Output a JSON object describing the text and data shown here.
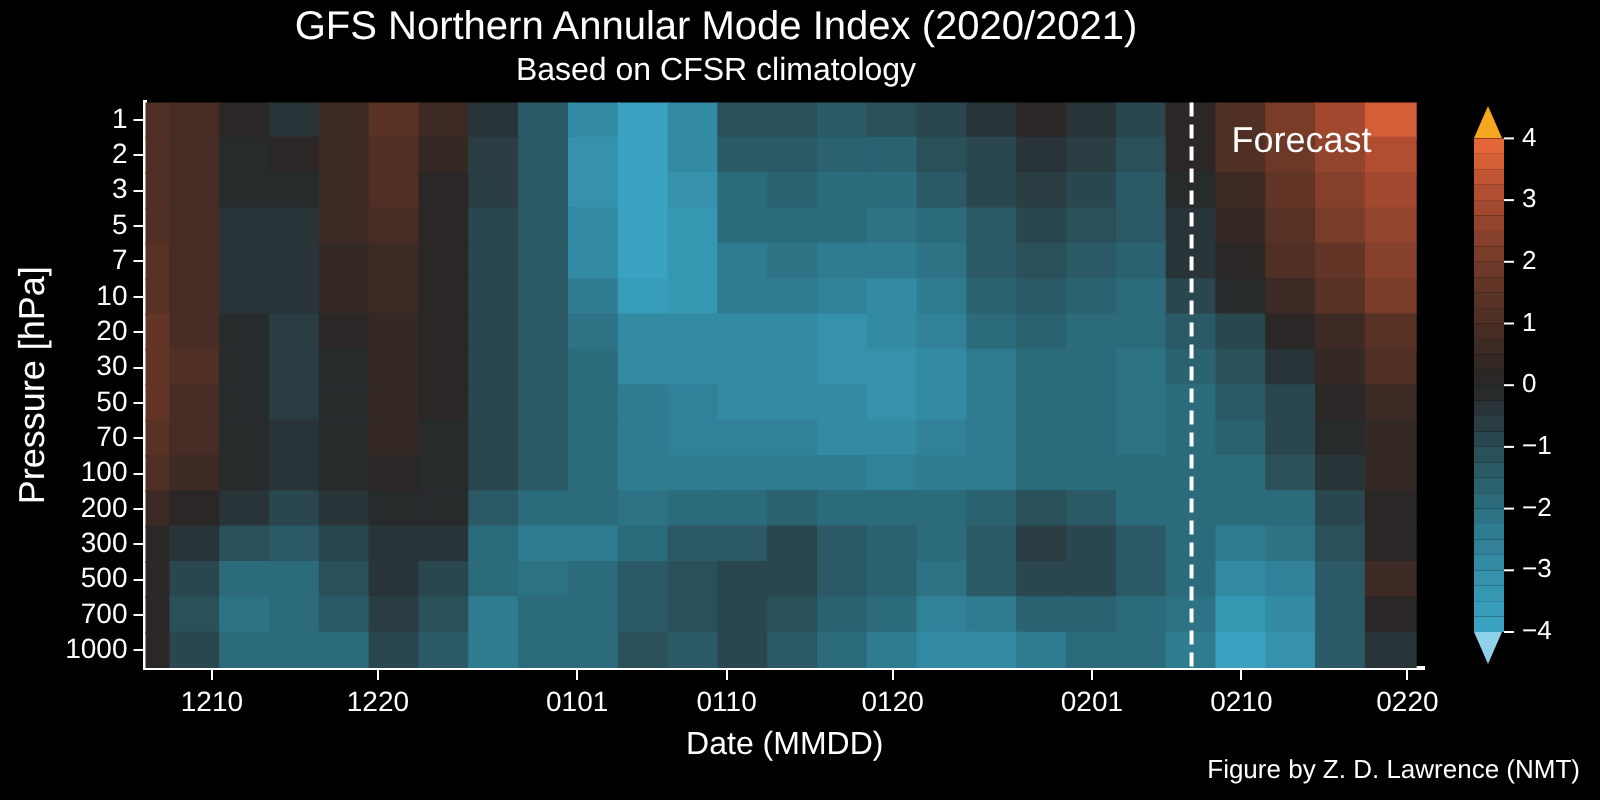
{
  "chart_data": {
    "type": "heatmap",
    "title": "GFS Northern Annular Mode Index (2020/2021)",
    "subtitle": "Based on CFSR climatology",
    "xlabel": "Date (MMDD)",
    "ylabel": "Pressure [hPa]",
    "x": [
      "2020-12-06",
      "2020-12-09",
      "2020-12-12",
      "2020-12-15",
      "2020-12-18",
      "2020-12-21",
      "2020-12-24",
      "2020-12-27",
      "2020-12-30",
      "2021-01-02",
      "2021-01-05",
      "2021-01-08",
      "2021-01-11",
      "2021-01-14",
      "2021-01-17",
      "2021-01-20",
      "2021-01-23",
      "2021-01-26",
      "2021-01-29",
      "2021-02-01",
      "2021-02-04",
      "2021-02-07",
      "2021-02-10",
      "2021-02-13",
      "2021-02-16",
      "2021-02-19"
    ],
    "xlim": [
      "2020-12-06",
      "2021-02-21"
    ],
    "xticks": [
      {
        "value": "2020-12-10",
        "label": "1210"
      },
      {
        "value": "2020-12-20",
        "label": "1220"
      },
      {
        "value": "2021-01-01",
        "label": "0101"
      },
      {
        "value": "2021-01-10",
        "label": "0110"
      },
      {
        "value": "2021-01-20",
        "label": "0120"
      },
      {
        "value": "2021-02-01",
        "label": "0201"
      },
      {
        "value": "2021-02-10",
        "label": "0210"
      },
      {
        "value": "2021-02-20",
        "label": "0220"
      }
    ],
    "y_categories": [
      "1",
      "2",
      "3",
      "5",
      "7",
      "10",
      "20",
      "30",
      "50",
      "70",
      "100",
      "200",
      "300",
      "500",
      "700",
      "1000"
    ],
    "cells": [
      [
        1,
        0.8,
        0,
        -0.3,
        0.5,
        1.3,
        0.5,
        -0.5,
        -1.5,
        -3,
        -4,
        -3,
        -1.2,
        -1.2,
        -1.5,
        -1.2,
        -0.9,
        -0.5,
        0,
        -0.5,
        -1,
        0.2,
        1.2,
        2,
        2.8,
        3.5
      ],
      [
        1,
        0.8,
        -0.2,
        0,
        0.5,
        1.2,
        0.4,
        -0.6,
        -1.5,
        -3.2,
        -4,
        -3,
        -1.5,
        -1.4,
        -1.7,
        -1.6,
        -1.2,
        -0.8,
        -0.4,
        -0.7,
        -1.1,
        0,
        1,
        1.8,
        2.6,
        3
      ],
      [
        1.1,
        0.8,
        -0.2,
        -0.1,
        0.5,
        1.1,
        0.2,
        -0.7,
        -1.5,
        -3.1,
        -4,
        -3.2,
        -1.8,
        -1.6,
        -1.8,
        -1.9,
        -1.5,
        -1,
        -0.7,
        -0.9,
        -1.3,
        -0.1,
        0.7,
        1.6,
        2.4,
        2.8
      ],
      [
        1.2,
        0.8,
        -0.3,
        -0.3,
        0.5,
        0.9,
        0.1,
        -0.8,
        -1.5,
        -3,
        -4,
        -3.3,
        -2,
        -1.8,
        -2,
        -2.2,
        -1.8,
        -1.3,
        -1,
        -1.2,
        -1.5,
        -0.3,
        0.3,
        1.3,
        2,
        2.5
      ],
      [
        1.3,
        0.8,
        -0.3,
        -0.4,
        0.4,
        0.7,
        0,
        -0.8,
        -1.5,
        -2.8,
        -3.9,
        -3.3,
        -2.3,
        -2.2,
        -2.4,
        -2.5,
        -2.1,
        -1.5,
        -1.2,
        -1.4,
        -1.7,
        -0.5,
        0,
        1,
        1.7,
        2.3
      ],
      [
        1.4,
        0.8,
        -0.3,
        -0.5,
        0.3,
        0.5,
        0,
        -0.8,
        -1.5,
        -2.5,
        -3.6,
        -3.3,
        -2.5,
        -2.5,
        -2.7,
        -2.8,
        -2.3,
        -1.7,
        -1.4,
        -1.6,
        -1.8,
        -0.8,
        -0.2,
        0.6,
        1.4,
        2
      ],
      [
        1.6,
        0.9,
        -0.2,
        -0.6,
        0.1,
        0.4,
        0,
        -0.8,
        -1.4,
        -2.2,
        -3,
        -3,
        -2.8,
        -3,
        -3.2,
        -3,
        -2.6,
        -2,
        -1.6,
        -1.8,
        -2,
        -1.3,
        -0.8,
        0,
        0.7,
        1.3
      ],
      [
        1.6,
        1,
        -0.2,
        -0.6,
        -0.1,
        0.3,
        0,
        -0.8,
        -1.3,
        -2,
        -2.8,
        -2.8,
        -2.8,
        -3,
        -3.2,
        -3.2,
        -2.8,
        -2.3,
        -1.8,
        -2,
        -2.1,
        -1.6,
        -1.2,
        -0.4,
        0.3,
        1
      ],
      [
        1.5,
        0.9,
        -0.2,
        -0.6,
        -0.1,
        0.4,
        0,
        -0.9,
        -1.4,
        -1.9,
        -2.5,
        -2.7,
        -2.8,
        -2.8,
        -3,
        -3.2,
        -2.8,
        -2.5,
        -2,
        -2,
        -2.2,
        -1.8,
        -1.5,
        -0.8,
        0,
        0.6
      ],
      [
        1.3,
        0.8,
        -0.2,
        -0.5,
        -0.2,
        0.4,
        -0.1,
        -1,
        -1.5,
        -1.8,
        -2.4,
        -2.6,
        -2.7,
        -2.6,
        -2.8,
        -3,
        -2.7,
        -2.4,
        -2,
        -2,
        -2.1,
        -1.9,
        -1.6,
        -1,
        -0.2,
        0.4
      ],
      [
        1,
        0.7,
        -0.2,
        -0.5,
        -0.2,
        0.2,
        -0.1,
        -1,
        -1.5,
        -1.8,
        -2.3,
        -2.5,
        -2.5,
        -2.4,
        -2.5,
        -2.7,
        -2.5,
        -2.3,
        -2,
        -2,
        -2,
        -2,
        -1.8,
        -1.2,
        -0.3,
        0.3
      ],
      [
        0.5,
        0.2,
        -0.5,
        -0.8,
        -0.5,
        -0.1,
        -0.2,
        -1.5,
        -2,
        -2,
        -2.2,
        -2,
        -1.8,
        -1.6,
        -1.8,
        -2,
        -2,
        -1.6,
        -1.2,
        -1.5,
        -1.8,
        -1.8,
        -2,
        -1.8,
        -0.8,
        0.1
      ],
      [
        0.2,
        -0.5,
        -1.2,
        -1.3,
        -1,
        -0.4,
        -0.4,
        -1.8,
        -2.3,
        -2.3,
        -1.8,
        -1.5,
        -1.3,
        -1,
        -1.5,
        -1.6,
        -1.8,
        -1.3,
        -0.7,
        -1,
        -1.5,
        -1.8,
        -2.3,
        -2.2,
        -1.2,
        0.2
      ],
      [
        0,
        -1,
        -1.8,
        -1.8,
        -1.2,
        -0.5,
        -0.8,
        -2,
        -2.2,
        -2,
        -1.5,
        -1.2,
        -1,
        -1,
        -1.4,
        -1.6,
        -2.2,
        -1.5,
        -0.8,
        -1,
        -1.5,
        -2,
        -2.8,
        -2.6,
        -1.5,
        0.5
      ],
      [
        0,
        -1.2,
        -2.2,
        -2,
        -1.5,
        -0.6,
        -1.2,
        -2.3,
        -2,
        -1.8,
        -1.3,
        -1.2,
        -1,
        -1.2,
        -1.6,
        -2,
        -2.6,
        -2.3,
        -1.6,
        -1.6,
        -1.8,
        -2.2,
        -3.3,
        -3,
        -1.5,
        0.2
      ],
      [
        0,
        -1,
        -2,
        -2,
        -1.8,
        -0.8,
        -1.5,
        -2.5,
        -1.8,
        -1.8,
        -1.2,
        -1.3,
        -1,
        -1.5,
        -1.8,
        -2.3,
        -3,
        -2.8,
        -2.3,
        -2,
        -2,
        -2.4,
        -4,
        -3.2,
        -1.5,
        -0.3
      ]
    ],
    "clim": [
      -4,
      4
    ],
    "cticks": [
      {
        "value": -4,
        "label": "−4"
      },
      {
        "value": -3,
        "label": "−3"
      },
      {
        "value": -2,
        "label": "−2"
      },
      {
        "value": -1,
        "label": "−1"
      },
      {
        "value": 0,
        "label": "0"
      },
      {
        "value": 1,
        "label": "1"
      },
      {
        "value": 2,
        "label": "2"
      },
      {
        "value": 3,
        "label": "3"
      },
      {
        "value": 4,
        "label": "4"
      }
    ],
    "ref_lines": [
      {
        "axis": "x",
        "value": "2021-02-07",
        "label": "Forecast",
        "color": "#ffffff",
        "line_style": "dashed"
      }
    ],
    "annotations": [
      "Figure by Z. D. Lawrence (NMT)"
    ]
  }
}
